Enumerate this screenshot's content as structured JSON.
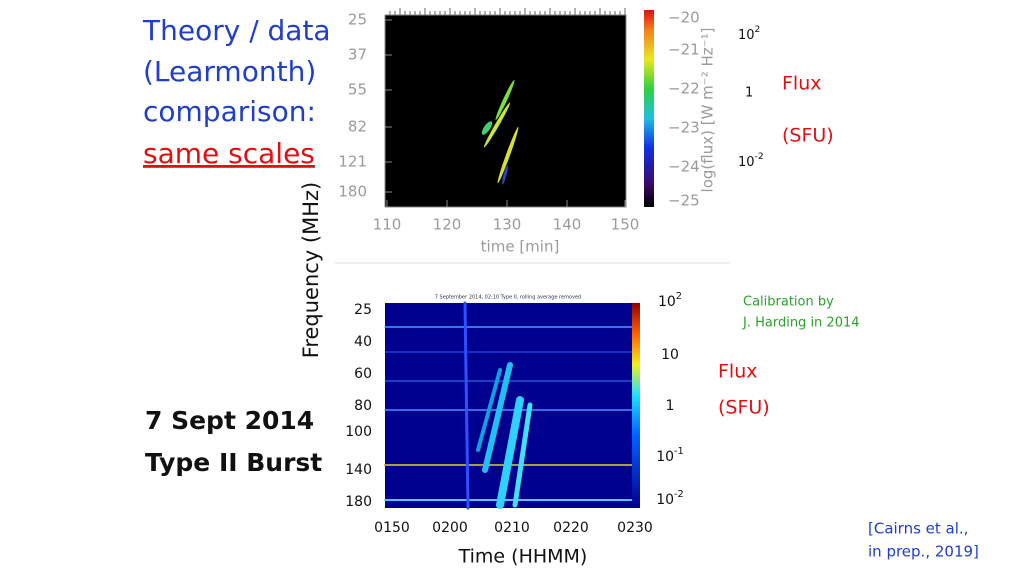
{
  "title_block": {
    "lines": [
      "Theory / data",
      "(Learmonth)",
      "comparison:",
      "same scales"
    ]
  },
  "frequency_axis_label": "Frequency (MHz)",
  "theory_plot": {
    "y_labels": [
      "25",
      "37",
      "55",
      "82",
      "121",
      "180"
    ],
    "x_labels": [
      "110",
      "120",
      "130",
      "140",
      "150"
    ],
    "x_axis_label": "time [min]",
    "colorbar_ticks": [
      "−20",
      "−21",
      "−22",
      "−23",
      "−24",
      "−25"
    ],
    "colorbar_label": "log(flux) [W m⁻² Hz⁻¹]"
  },
  "theory_flux_scale": {
    "ticks": [
      {
        "base": "10",
        "exp": "2"
      },
      "1",
      {
        "base": "10",
        "exp": "-2"
      }
    ],
    "label": "Flux",
    "unit": "(SFU)"
  },
  "observation_plot": {
    "title": "7 September 2014, 02:10 Type II, rolling average removed",
    "y_labels": [
      "25",
      "40",
      "60",
      "80",
      "100",
      "140",
      "180"
    ],
    "x_labels": [
      "0150",
      "0200",
      "0210",
      "0220",
      "0230"
    ],
    "x_axis_label": "Time (HHMM)",
    "colorbar_ticks": [
      {
        "base": "10",
        "exp": "2"
      },
      "10",
      "1",
      {
        "base": "10",
        "exp": "-1"
      },
      {
        "base": "10",
        "exp": "-2"
      }
    ]
  },
  "observation_flux_scale": {
    "label": "Flux",
    "unit": "(SFU)"
  },
  "calibration_note": [
    "Calibration by",
    "J. Harding in 2014"
  ],
  "event": [
    "7 Sept 2014",
    "Type II Burst"
  ],
  "citation": [
    "[Cairns et al.,",
    "in prep., 2019]"
  ]
}
